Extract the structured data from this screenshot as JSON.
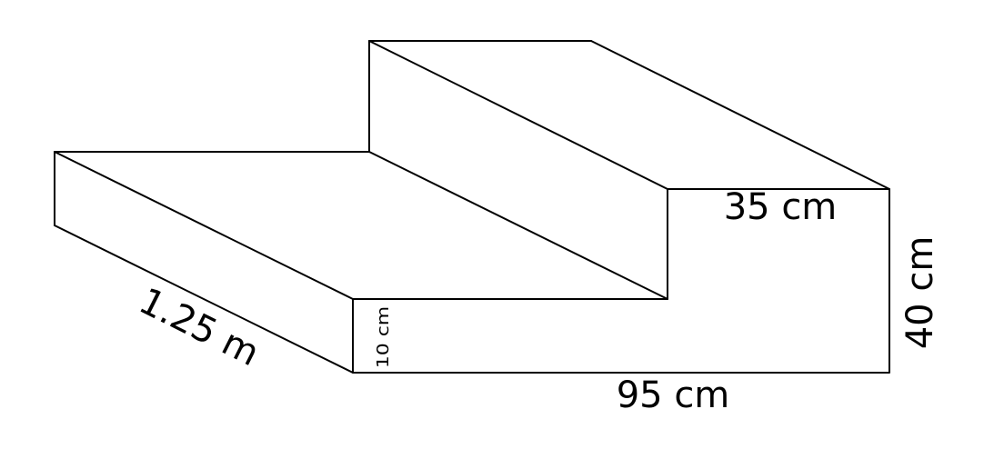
{
  "diagram": {
    "shape": "two-step stair block",
    "labels": {
      "depth": "1.25 m",
      "step_height": "10 cm",
      "base_length": "95 cm",
      "top_step_width": "35 cm",
      "total_height": "40 cm"
    },
    "colors": {
      "stroke": "#000000",
      "fill": "#ffffff"
    }
  }
}
